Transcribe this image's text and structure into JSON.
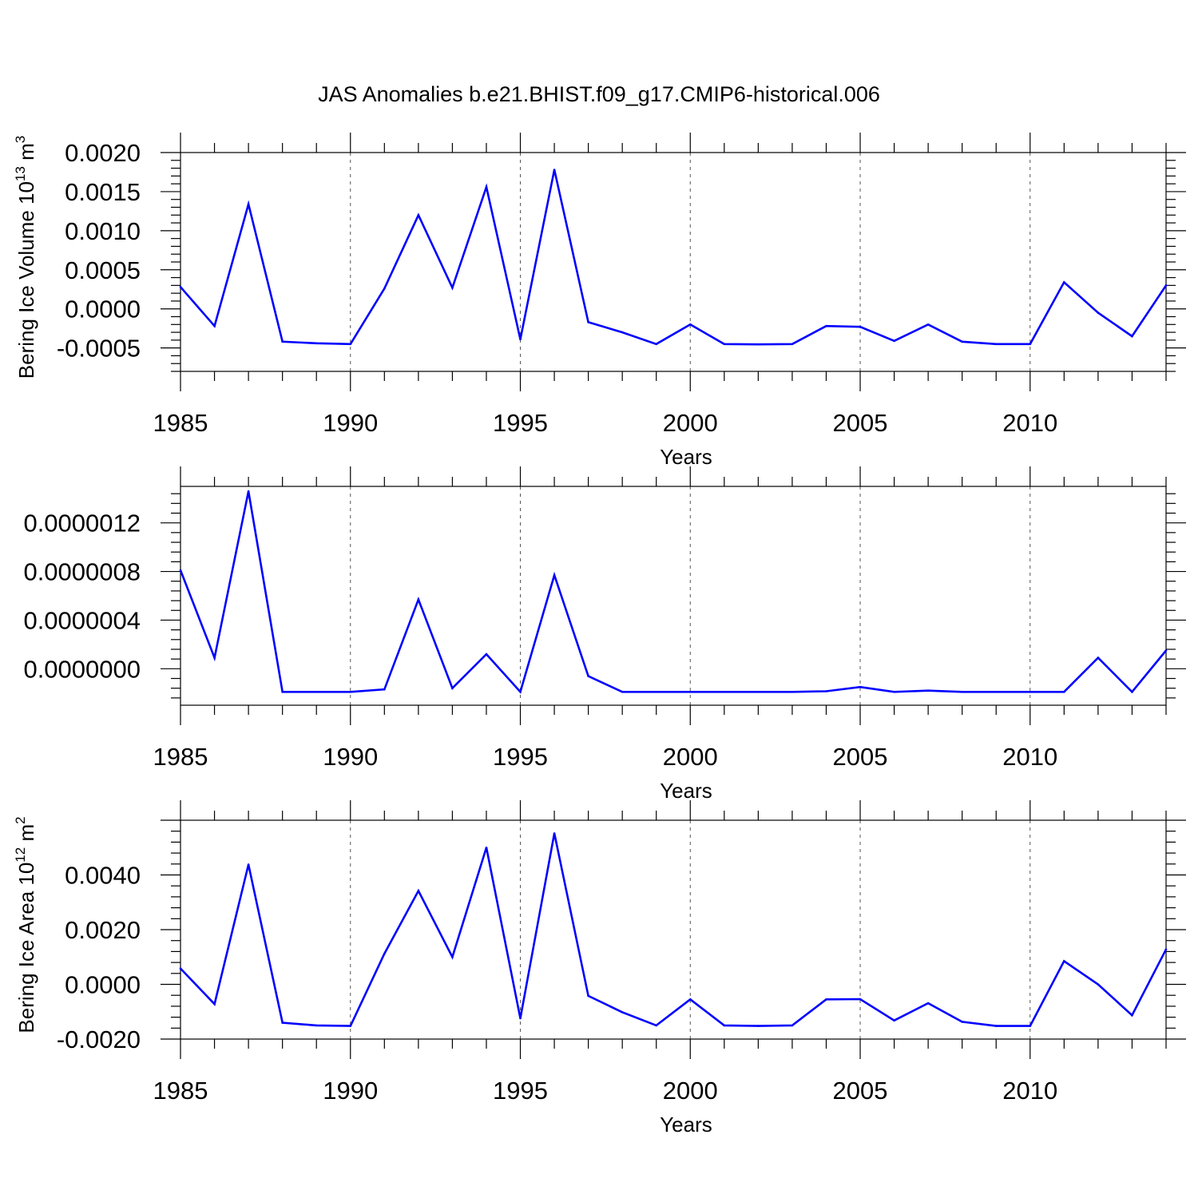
{
  "title": "JAS Anomalies b.e21.BHIST.f09_g17.CMIP6-historical.006",
  "colors": {
    "series": "#0000ff",
    "axis": "#000000",
    "grid": "#555555"
  },
  "chart_data": [
    {
      "type": "line",
      "xlabel": "Years",
      "ylabel": "Bering Ice Volume 10",
      "ylabel_sup": "13",
      "ylabel_unit": " m",
      "ylabel_unit_sup": "3",
      "xlim": [
        1985,
        2014
      ],
      "ylim": [
        -0.0008,
        0.002
      ],
      "xticks": [
        1985,
        1990,
        1995,
        2000,
        2005,
        2010
      ],
      "xtick_labels": [
        "1985",
        "1990",
        "1995",
        "2000",
        "2005",
        "2010"
      ],
      "yticks": [
        -0.0005,
        0.0,
        0.0005,
        0.001,
        0.0015,
        0.002
      ],
      "ytick_labels": [
        "-0.0005",
        "0.0000",
        "0.0005",
        "0.0010",
        "0.0015",
        "0.0020"
      ],
      "x": [
        1985,
        1986,
        1987,
        1988,
        1989,
        1990,
        1991,
        1992,
        1993,
        1994,
        1995,
        1996,
        1997,
        1998,
        1999,
        2000,
        2001,
        2002,
        2003,
        2004,
        2005,
        2006,
        2007,
        2008,
        2009,
        2010,
        2011,
        2012,
        2013,
        2014
      ],
      "values": [
        0.00028,
        -0.00022,
        0.00134,
        -0.00042,
        -0.00044,
        -0.00045,
        0.00026,
        0.0012,
        0.00027,
        0.00156,
        -0.00039,
        0.00178,
        -0.00017,
        -0.0003,
        -0.00045,
        -0.0002,
        -0.00045,
        -0.000455,
        -0.00045,
        -0.00022,
        -0.00023,
        -0.00041,
        -0.0002,
        -0.00042,
        -0.00045,
        -0.00045,
        0.00034,
        -5e-05,
        -0.00035,
        0.0003
      ]
    },
    {
      "type": "line",
      "xlabel": "Years",
      "ylabel": "",
      "xlim": [
        1985,
        2014
      ],
      "ylim": [
        -3e-07,
        1.5e-06
      ],
      "xticks": [
        1985,
        1990,
        1995,
        2000,
        2005,
        2010
      ],
      "xtick_labels": [
        "1985",
        "1990",
        "1995",
        "2000",
        "2005",
        "2010"
      ],
      "yticks": [
        0.0,
        4e-07,
        8e-07,
        1.2e-06
      ],
      "ytick_labels": [
        "0.0000000",
        "0.0000004",
        "0.0000008",
        "0.0000012"
      ],
      "x": [
        1985,
        1986,
        1987,
        1988,
        1989,
        1990,
        1991,
        1992,
        1993,
        1994,
        1995,
        1996,
        1997,
        1998,
        1999,
        2000,
        2001,
        2002,
        2003,
        2004,
        2005,
        2006,
        2007,
        2008,
        2009,
        2010,
        2011,
        2012,
        2013,
        2014
      ],
      "values": [
        8.1e-07,
        9e-08,
        1.46e-06,
        -1.9e-07,
        -1.9e-07,
        -1.9e-07,
        -1.7e-07,
        5.7e-07,
        -1.6e-07,
        1.2e-07,
        -1.9e-07,
        7.7e-07,
        -6e-08,
        -1.9e-07,
        -1.9e-07,
        -1.9e-07,
        -1.9e-07,
        -1.9e-07,
        -1.9e-07,
        -1.85e-07,
        -1.5e-07,
        -1.9e-07,
        -1.8e-07,
        -1.9e-07,
        -1.9e-07,
        -1.9e-07,
        -1.9e-07,
        9e-08,
        -1.9e-07,
        1.5e-07
      ]
    },
    {
      "type": "line",
      "xlabel": "Years",
      "ylabel": "Bering Ice Area 10",
      "ylabel_sup": "12",
      "ylabel_unit": " m",
      "ylabel_unit_sup": "2",
      "xlim": [
        1985,
        2014
      ],
      "ylim": [
        -0.002,
        0.006
      ],
      "xticks": [
        1985,
        1990,
        1995,
        2000,
        2005,
        2010
      ],
      "xtick_labels": [
        "1985",
        "1990",
        "1995",
        "2000",
        "2005",
        "2010"
      ],
      "yticks": [
        -0.002,
        0.0,
        0.002,
        0.004
      ],
      "ytick_labels": [
        "-0.0020",
        "0.0000",
        "0.0020",
        "0.0040"
      ],
      "x": [
        1985,
        1986,
        1987,
        1988,
        1989,
        1990,
        1991,
        1992,
        1993,
        1994,
        1995,
        1996,
        1997,
        1998,
        1999,
        2000,
        2001,
        2002,
        2003,
        2004,
        2005,
        2006,
        2007,
        2008,
        2009,
        2010,
        2011,
        2012,
        2013,
        2014
      ],
      "values": [
        0.00058,
        -0.00072,
        0.00438,
        -0.0014,
        -0.0015,
        -0.00152,
        0.00112,
        0.00342,
        0.001,
        0.005,
        -0.00124,
        0.00552,
        -0.00042,
        -0.00102,
        -0.0015,
        -0.00055,
        -0.0015,
        -0.00152,
        -0.0015,
        -0.00055,
        -0.00054,
        -0.00132,
        -0.00069,
        -0.00137,
        -0.00152,
        -0.00152,
        0.00085,
        0.0,
        -0.00113,
        0.00128
      ]
    }
  ]
}
